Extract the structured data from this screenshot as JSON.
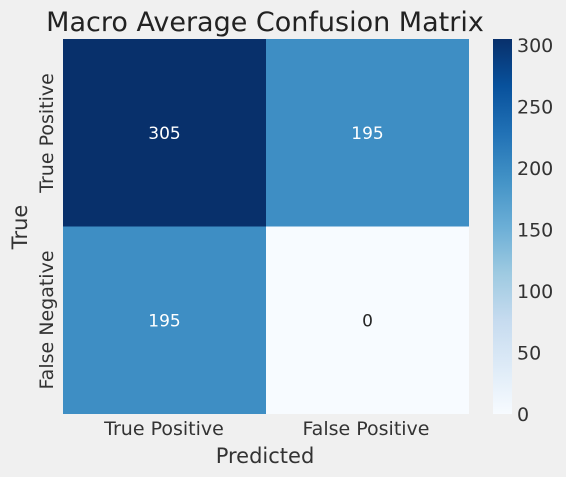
{
  "chart_data": {
    "type": "heatmap",
    "title": "Macro Average Confusion Matrix",
    "xlabel": "Predicted",
    "ylabel": "True",
    "x_categories": [
      "True Positive",
      "False Positive"
    ],
    "y_categories": [
      "True Positive",
      "False Negative"
    ],
    "values": [
      [
        305,
        195
      ],
      [
        195,
        0
      ]
    ],
    "value_labels": [
      [
        "305",
        "195"
      ],
      [
        "195",
        "0"
      ]
    ],
    "colorbar": {
      "min": 0,
      "max": 305,
      "ticks": [
        0,
        50,
        100,
        150,
        200,
        250,
        300
      ],
      "tick_labels": [
        "0",
        "50",
        "100",
        "150",
        "200",
        "250",
        "300"
      ]
    },
    "colormap": "Blues",
    "colors": {
      "low": "#f7fbff",
      "mid": "#3a8ac4",
      "high": "#08306b",
      "background": "#f0f0f0"
    }
  }
}
